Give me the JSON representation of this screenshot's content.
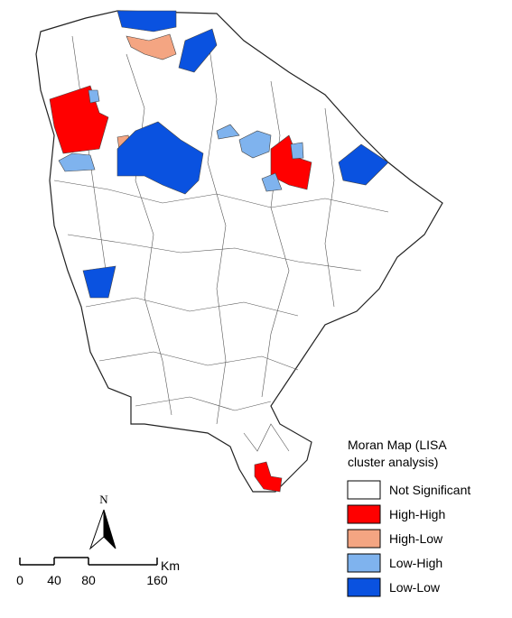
{
  "legend": {
    "title": [
      "Moran Map (LISA",
      "cluster analysis)"
    ],
    "items": [
      {
        "label": "Not Significant",
        "color": "#ffffff"
      },
      {
        "label": "High-High",
        "color": "#ff0000"
      },
      {
        "label": "High-Low",
        "color": "#f4a582"
      },
      {
        "label": "Low-High",
        "color": "#7fb3ee"
      },
      {
        "label": "Low-Low",
        "color": "#0a52e0"
      }
    ]
  },
  "north": "N",
  "scale_bar": {
    "ticks": [
      0,
      40,
      80,
      160
    ],
    "unit": "Km"
  }
}
